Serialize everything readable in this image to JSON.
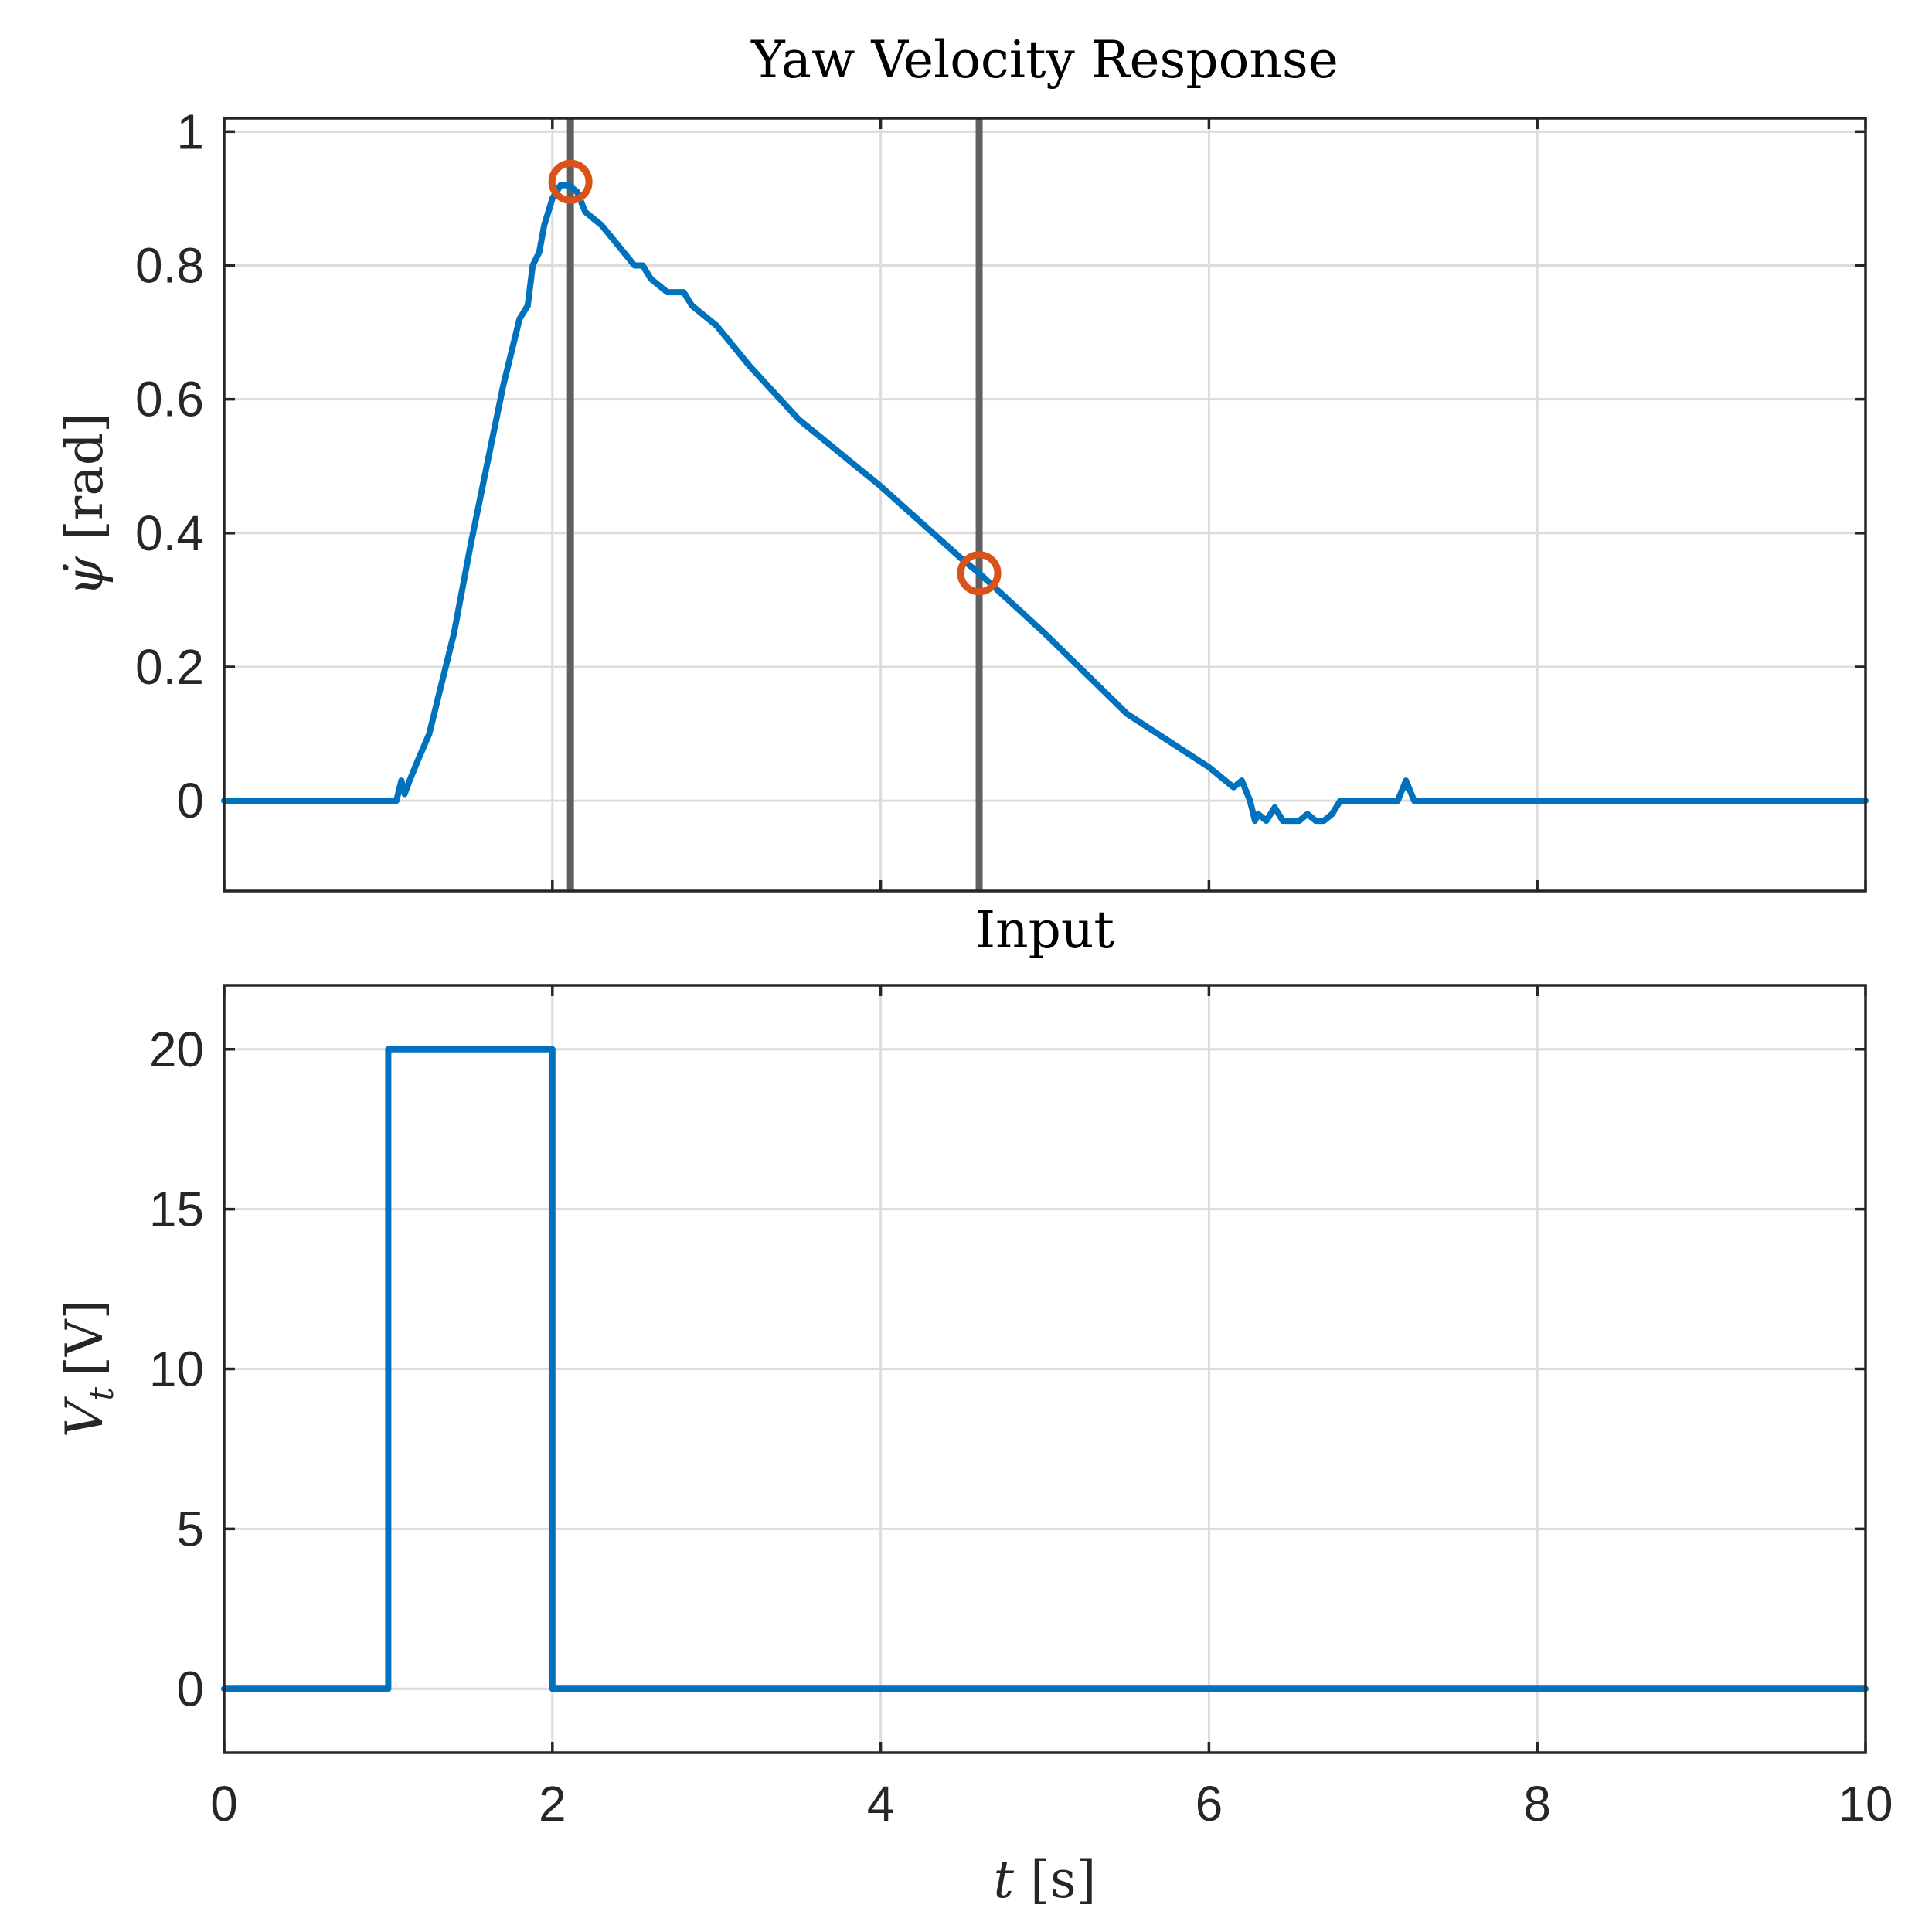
{
  "chart_data": [
    {
      "type": "line",
      "title": "Yaw Velocity Response",
      "xlabel": "",
      "ylabel": {
        "symbol": "ψ̇",
        "unit": "[rad]"
      },
      "xlim": [
        0,
        10
      ],
      "ylim": [
        -0.135,
        1.02
      ],
      "xticks": [
        0,
        2,
        4,
        6,
        8,
        10
      ],
      "yticks": [
        0,
        0.2,
        0.4,
        0.6,
        0.8,
        1
      ],
      "show_xticklabels": false,
      "grid": true,
      "line_color": "#0072BD",
      "vline_color": "#606060",
      "marker_color": "#D95319",
      "series": [
        {
          "x": [
            0,
            1.05,
            1.08,
            1.1,
            1.13,
            1.18,
            1.25,
            1.3,
            1.4,
            1.5,
            1.6,
            1.7,
            1.75,
            1.8,
            1.85,
            1.88,
            1.92,
            1.95,
            2.0,
            2.05,
            2.1,
            2.15,
            2.2,
            2.3,
            2.4,
            2.5,
            2.55,
            2.6,
            2.65,
            2.7,
            2.75,
            2.8,
            2.85,
            2.9,
            3.0,
            3.2,
            3.5,
            4.0,
            4.5,
            4.6,
            5.0,
            5.5,
            6.0,
            6.1,
            6.15,
            6.2,
            6.25,
            6.28,
            6.3,
            6.35,
            6.4,
            6.45,
            6.5,
            6.55,
            6.6,
            6.65,
            6.7,
            6.75,
            6.8,
            6.85,
            7.0,
            7.15,
            7.2,
            7.25,
            7.3,
            8.0,
            10.0
          ],
          "y": [
            0,
            0,
            0.03,
            0.01,
            0.03,
            0.06,
            0.1,
            0.15,
            0.25,
            0.38,
            0.5,
            0.62,
            0.67,
            0.72,
            0.74,
            0.8,
            0.82,
            0.86,
            0.9,
            0.92,
            0.92,
            0.91,
            0.88,
            0.86,
            0.83,
            0.8,
            0.8,
            0.78,
            0.77,
            0.76,
            0.76,
            0.76,
            0.74,
            0.73,
            0.71,
            0.65,
            0.57,
            0.47,
            0.36,
            0.34,
            0.25,
            0.13,
            0.05,
            0.03,
            0.02,
            0.03,
            0.0,
            -0.03,
            -0.02,
            -0.03,
            -0.01,
            -0.03,
            -0.03,
            -0.03,
            -0.02,
            -0.03,
            -0.03,
            -0.02,
            0.0,
            0.0,
            0.0,
            0.0,
            0.03,
            0.0,
            0.0,
            0.0,
            0.0
          ]
        }
      ],
      "vlines": [
        2.11,
        4.6
      ],
      "markers": [
        {
          "x": 2.11,
          "y": 0.925
        },
        {
          "x": 4.6,
          "y": 0.34
        }
      ]
    },
    {
      "type": "line",
      "title": "Input",
      "xlabel": {
        "symbol": "t",
        "unit": "[s]"
      },
      "ylabel": {
        "symbol": "V",
        "sub": "t",
        "unit": "[V]"
      },
      "xlim": [
        0,
        10
      ],
      "ylim": [
        -2,
        22
      ],
      "xticks": [
        0,
        2,
        4,
        6,
        8,
        10
      ],
      "yticks": [
        0,
        5,
        10,
        15,
        20
      ],
      "show_xticklabels": true,
      "grid": true,
      "line_color": "#0072BD",
      "series": [
        {
          "x": [
            0,
            1.0,
            1.0,
            2.0,
            2.0,
            10.0
          ],
          "y": [
            0,
            0,
            20,
            20,
            0,
            0
          ]
        }
      ]
    }
  ]
}
